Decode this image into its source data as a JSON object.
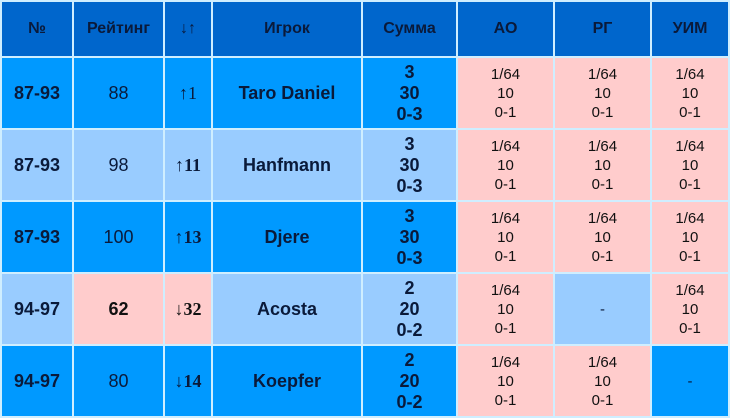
{
  "headers": [
    "№",
    "Рейтинг",
    "↓↑",
    "Игрок",
    "Сумма",
    "АО",
    "РГ",
    "УИМ"
  ],
  "colors": {
    "header": "#0066cc",
    "dark": "#0099ff",
    "light": "#99ccff",
    "pink": "#ffcccc"
  },
  "rows": [
    {
      "place": "87-93",
      "rating": "88",
      "change": "↑1",
      "player": "Taro Daniel",
      "sum": [
        "3",
        "30",
        "0-3"
      ],
      "shade": "dark",
      "rating_highlight": false,
      "results": [
        {
          "lines": [
            "1/64",
            "10",
            "0-1"
          ]
        },
        {
          "lines": [
            "1/64",
            "10",
            "0-1"
          ]
        },
        {
          "lines": [
            "1/64",
            "10",
            "0-1"
          ]
        }
      ]
    },
    {
      "place": "87-93",
      "rating": "98",
      "change": "↑11",
      "player": "Hanfmann",
      "sum": [
        "3",
        "30",
        "0-3"
      ],
      "shade": "light",
      "rating_highlight": false,
      "results": [
        {
          "lines": [
            "1/64",
            "10",
            "0-1"
          ]
        },
        {
          "lines": [
            "1/64",
            "10",
            "0-1"
          ]
        },
        {
          "lines": [
            "1/64",
            "10",
            "0-1"
          ]
        }
      ]
    },
    {
      "place": "87-93",
      "rating": "100",
      "change": "↑13",
      "player": "Djere",
      "sum": [
        "3",
        "30",
        "0-3"
      ],
      "shade": "dark",
      "rating_highlight": false,
      "results": [
        {
          "lines": [
            "1/64",
            "10",
            "0-1"
          ]
        },
        {
          "lines": [
            "1/64",
            "10",
            "0-1"
          ]
        },
        {
          "lines": [
            "1/64",
            "10",
            "0-1"
          ]
        }
      ]
    },
    {
      "place": "94-97",
      "rating": "62",
      "change": "↓32",
      "player": "Acosta",
      "sum": [
        "2",
        "20",
        "0-2"
      ],
      "shade": "light",
      "rating_highlight": true,
      "results": [
        {
          "lines": [
            "1/64",
            "10",
            "0-1"
          ]
        },
        {
          "lines": [
            "-"
          ]
        },
        {
          "lines": [
            "1/64",
            "10",
            "0-1"
          ]
        }
      ]
    },
    {
      "place": "94-97",
      "rating": "80",
      "change": "↓14",
      "player": "Koepfer",
      "sum": [
        "2",
        "20",
        "0-2"
      ],
      "shade": "dark",
      "rating_highlight": false,
      "results": [
        {
          "lines": [
            "1/64",
            "10",
            "0-1"
          ]
        },
        {
          "lines": [
            "1/64",
            "10",
            "0-1"
          ]
        },
        {
          "lines": [
            "-"
          ]
        }
      ]
    }
  ]
}
